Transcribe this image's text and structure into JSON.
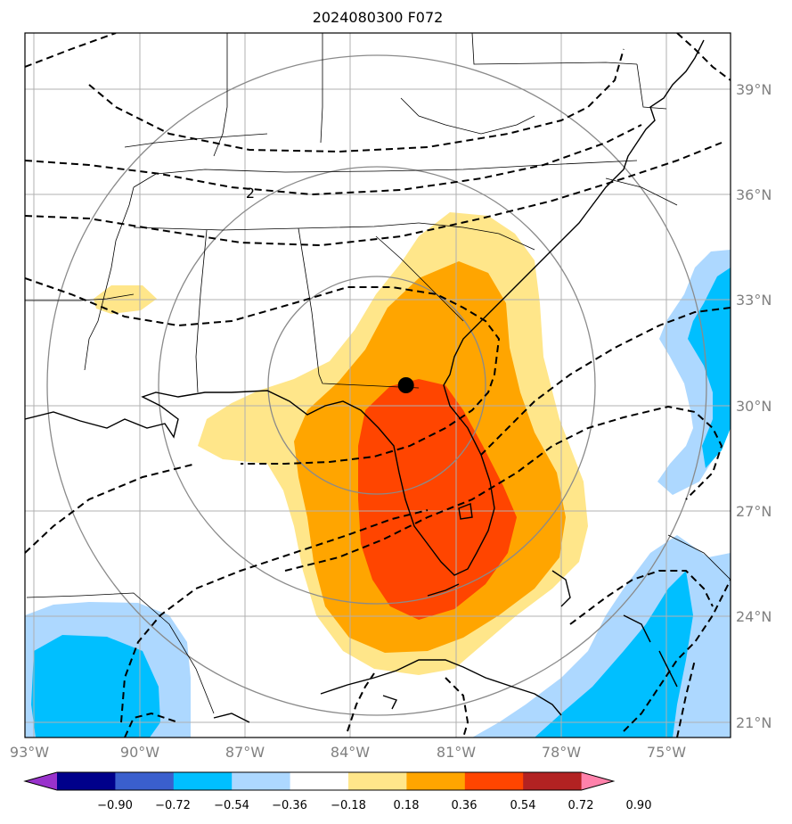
{
  "chart_data": {
    "type": "map",
    "title": "2024080300 F072",
    "lon_ticks": [
      "93°W",
      "90°W",
      "87°W",
      "84°W",
      "81°W",
      "78°W",
      "75°W"
    ],
    "lat_ticks": [
      "39°N",
      "36°N",
      "33°N",
      "30°N",
      "27°N",
      "24°N",
      "21°N"
    ],
    "lon_range": [
      -93,
      -73
    ],
    "lat_range": [
      20.6,
      40.6
    ],
    "grid": true,
    "center_marker": {
      "lon": -82.2,
      "lat": 30.6
    },
    "range_rings": true,
    "contour_label": "2",
    "colorbar": {
      "orientation": "horizontal",
      "extend": "both",
      "ticks": [
        "−0.90",
        "−0.72",
        "−0.54",
        "−0.36",
        "−0.18",
        "0.18",
        "0.36",
        "0.54",
        "0.72",
        "0.90"
      ],
      "colors": [
        "#9932cc",
        "#00008b",
        "#3a5fcd",
        "#00bfff",
        "#add8ff",
        "#ffffff",
        "#ffe68a",
        "#ffa500",
        "#ff4500",
        "#b22222",
        "#ff82ab"
      ]
    }
  }
}
